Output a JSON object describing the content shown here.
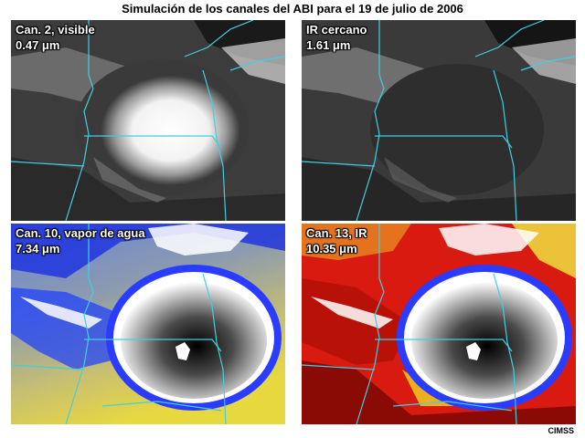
{
  "title": "Simulación de los canales del ABI para el 19 de julio de 2006",
  "panels": [
    {
      "channel": "Can. 2, visible",
      "wavelength": "0.47 μm"
    },
    {
      "channel": "IR cercano",
      "wavelength": "1.61 μm"
    },
    {
      "channel": "Can. 10, vapor de agua",
      "wavelength": "7.34 μm"
    },
    {
      "channel": "Can. 13, IR",
      "wavelength": "10.35 μm"
    }
  ],
  "credit": "CIMSS",
  "colors": {
    "border": "#3fd0e0",
    "visible_bg": "#3a3a3a",
    "ir_red": "#d81a10",
    "wv_yellow": "#e6d640",
    "wv_blue": "#1a3cff"
  }
}
